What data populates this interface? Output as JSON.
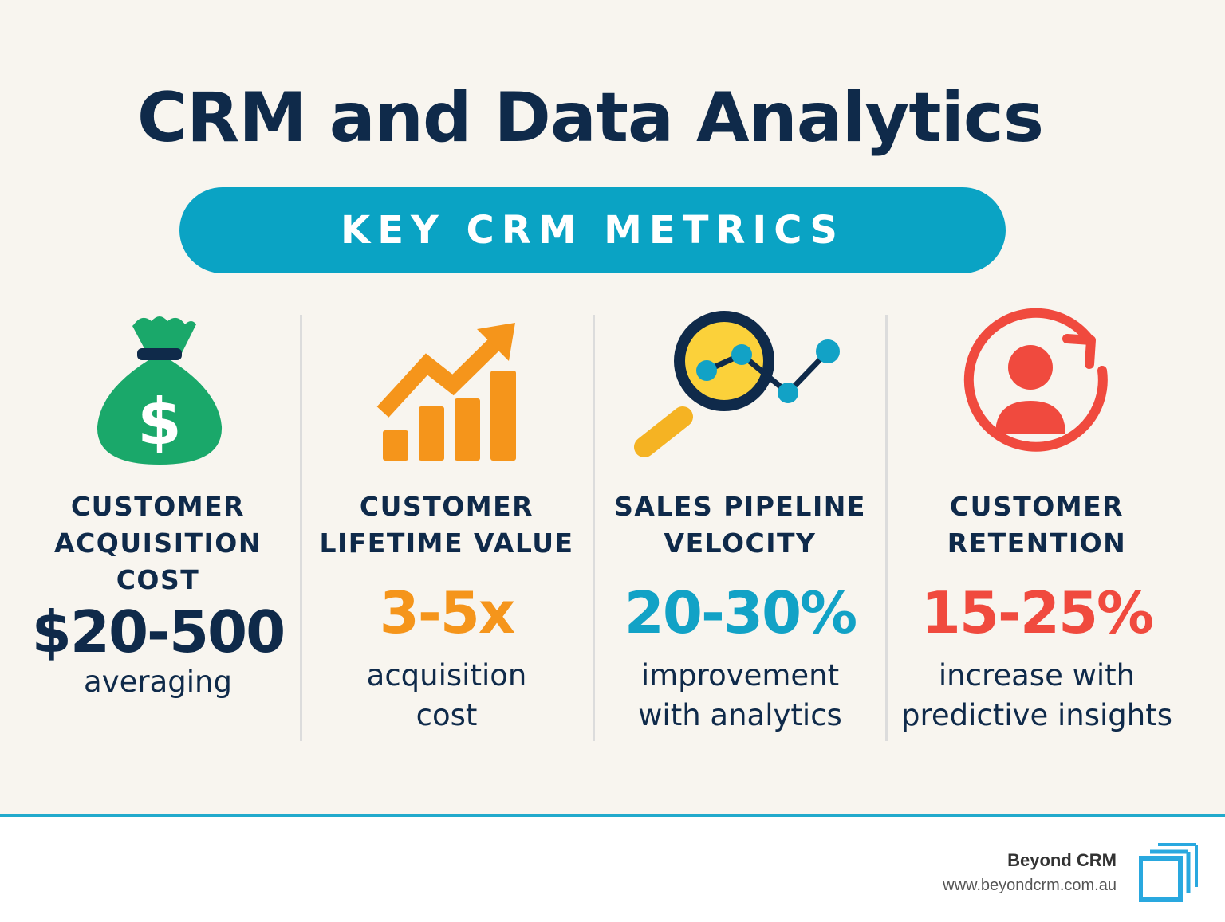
{
  "title": "CRM and Data Analytics",
  "banner": "KEY CRM METRICS",
  "metrics": [
    {
      "label_lines": [
        "CUSTOMER",
        "ACQUISITION",
        "COST"
      ],
      "value": "$20-500",
      "sub_lines": [
        "averaging"
      ],
      "icon": "money-bag-icon",
      "color": "#0f2a4a"
    },
    {
      "label_lines": [
        "CUSTOMER",
        "LIFETIME VALUE"
      ],
      "value": "3-5x",
      "sub_lines": [
        "acquisition",
        "cost"
      ],
      "icon": "growth-chart-icon",
      "color": "#f5951b"
    },
    {
      "label_lines": [
        "SALES PIPELINE",
        "VELOCITY"
      ],
      "value": "20-30%",
      "sub_lines": [
        "improvement",
        "with analytics"
      ],
      "icon": "analytics-magnifier-icon",
      "color": "#12a2c6"
    },
    {
      "label_lines": [
        "CUSTOMER",
        "RETENTION"
      ],
      "value": "15-25%",
      "sub_lines": [
        "increase with",
        "predictive insights"
      ],
      "icon": "customer-retention-icon",
      "color": "#f04a3e"
    }
  ],
  "footer": {
    "brand": "Beyond CRM",
    "url": "www.beyondcrm.com.au"
  },
  "colors": {
    "background": "#f8f5ef",
    "navy": "#0f2a4a",
    "teal": "#0aa3c4",
    "green": "#1aa86a",
    "orange": "#f5951b",
    "red": "#f04a3e",
    "yellow": "#fbd13a"
  }
}
